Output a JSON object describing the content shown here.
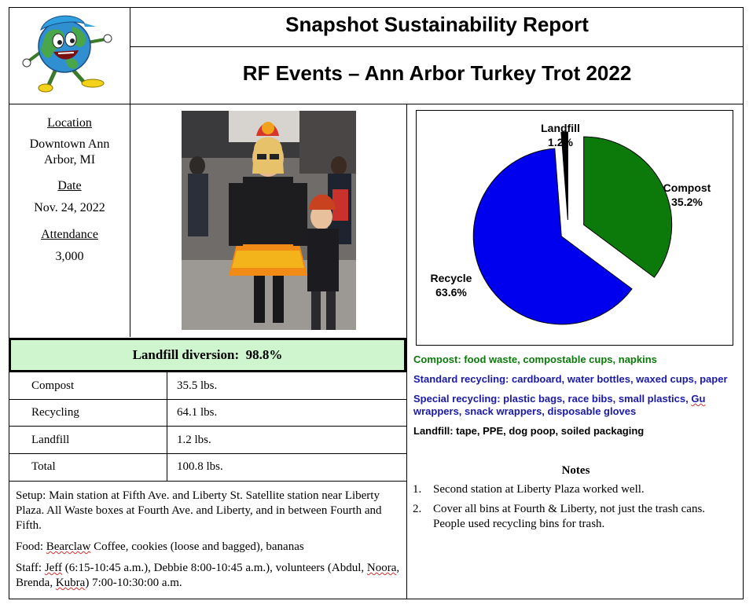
{
  "header": {
    "title": "Snapshot Sustainability Report",
    "subtitle": "RF Events – Ann Arbor Turkey Trot 2022"
  },
  "info": {
    "location_label": "Location",
    "location_value": "Downtown Ann Arbor, MI",
    "date_label": "Date",
    "date_value": "Nov. 24, 2022",
    "attendance_label": "Attendance",
    "attendance_value": "3,000"
  },
  "diversion": {
    "label": "Landfill diversion:",
    "value": "98.8%"
  },
  "waste_table": [
    {
      "category": "Compost",
      "amount": "35.5 lbs."
    },
    {
      "category": "Recycling",
      "amount": "64.1 lbs."
    },
    {
      "category": "Landfill",
      "amount": "1.2 lbs."
    },
    {
      "category": "Total",
      "amount": "100.8 lbs."
    }
  ],
  "setup_text": "Setup: Main station at Fifth Ave. and Liberty St. Satellite station near Liberty Plaza. All Waste boxes at Fourth Ave. and Liberty, and in between Fourth and Fifth.",
  "food": {
    "prefix": "Food: ",
    "brand": "Bearclaw",
    "rest": " Coffee, cookies (loose and bagged), bananas"
  },
  "staff": {
    "a": "Staff: ",
    "b": "Jeff",
    "c": " (6:15-10:45 a.m.), Debbie 8:00-10:45 a.m.), volunteers (Abdul, ",
    "d": "Noora",
    "e": ", Brenda, ",
    "f": "Kubra",
    "g": ") 7:00-10:30:00 a.m."
  },
  "chart_data": {
    "type": "pie",
    "title": "",
    "slices": [
      {
        "label": "Compost",
        "value": 35.2,
        "display": "35.2%",
        "color": "#0b7a0b"
      },
      {
        "label": "Recycle",
        "value": 63.6,
        "display": "63.6%",
        "color": "#0000ee"
      },
      {
        "label": "Landfill",
        "value": 1.2,
        "display": "1.2%",
        "color": "#000000"
      }
    ]
  },
  "legend": {
    "compost": "Compost: food waste, compostable cups, napkins",
    "standard": "Standard recycling: cardboard, water bottles, waxed cups, paper",
    "special_a": "Special recycling: plastic bags, race bibs, small plastics, ",
    "special_b": "Gu",
    "special_c": " wrappers, snack wrappers, disposable gloves",
    "landfill": "Landfill: tape, PPE, dog poop, soiled packaging",
    "colors": {
      "compost": "#0b7a0b",
      "recycling": "#1a1aa6",
      "landfill": "#000000"
    }
  },
  "notes": {
    "title": "Notes",
    "items": [
      {
        "num": "1.",
        "text": "Second station at Liberty Plaza worked well."
      },
      {
        "num": "2.",
        "text": "Cover all bins at Fourth & Liberty, not just the trash cans. People used recycling bins for trash."
      }
    ]
  }
}
